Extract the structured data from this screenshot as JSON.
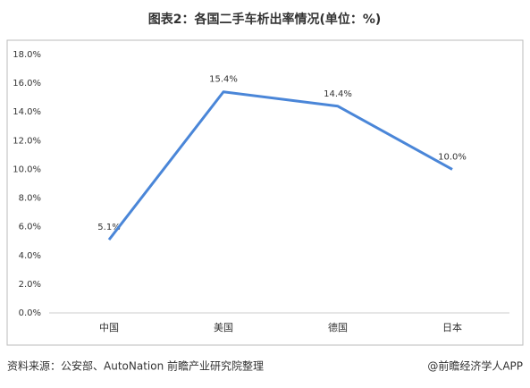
{
  "chart_data": {
    "type": "line",
    "title": "图表2：各国二手车析出率情况(单位：%)",
    "categories": [
      "中国",
      "美国",
      "德国",
      "日本"
    ],
    "series": [
      {
        "name": "析出率",
        "color": "#4a86d8",
        "values": [
          5.1,
          15.4,
          14.4,
          10.0
        ],
        "value_labels": [
          "5.1%",
          "15.4%",
          "14.4%",
          "10.0%"
        ]
      }
    ],
    "ylim": [
      0,
      18
    ],
    "yticks": [
      {
        "value": 0,
        "label": "0.0%"
      },
      {
        "value": 2,
        "label": "2.0%"
      },
      {
        "value": 4,
        "label": "4.0%"
      },
      {
        "value": 6,
        "label": "6.0%"
      },
      {
        "value": 8,
        "label": "8.0%"
      },
      {
        "value": 10,
        "label": "10.0%"
      },
      {
        "value": 12,
        "label": "12.0%"
      },
      {
        "value": 14,
        "label": "14.0%"
      },
      {
        "value": 16,
        "label": "16.0%"
      },
      {
        "value": 18,
        "label": "18.0%"
      }
    ],
    "grid": false,
    "source": "资料来源：公安部、AutoNation 前瞻产业研究院整理",
    "credit": "@前瞻经济学人APP"
  }
}
